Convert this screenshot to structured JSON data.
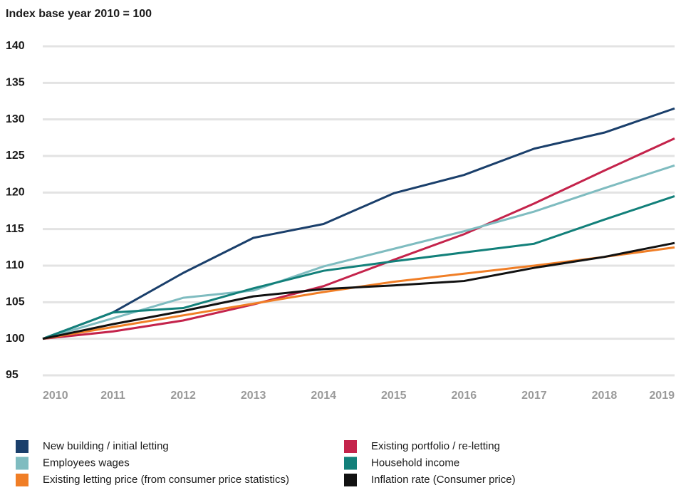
{
  "chart_data": {
    "type": "line",
    "title": "Index base year 2010 = 100",
    "x": [
      2010,
      2011,
      2012,
      2013,
      2014,
      2015,
      2016,
      2017,
      2018,
      2019
    ],
    "xlim": [
      2010,
      2019
    ],
    "xticks": [
      2010,
      2011,
      2012,
      2013,
      2014,
      2015,
      2016,
      2017,
      2018,
      2019
    ],
    "ylim": [
      95,
      140
    ],
    "yticks": [
      95,
      100,
      105,
      110,
      115,
      120,
      125,
      130,
      135,
      140
    ],
    "grid": true,
    "legend": "bottom",
    "series": [
      {
        "name": "New building / initial letting",
        "color": "#1a3f6b",
        "values": [
          100,
          103.6,
          109,
          113.8,
          115.7,
          119.9,
          122.4,
          126,
          128.2,
          131.5
        ]
      },
      {
        "name": "Existing portfolio / re-letting",
        "color": "#c4234b",
        "values": [
          100,
          101,
          102.5,
          104.7,
          107.2,
          110.8,
          114.3,
          118.5,
          123,
          127.4
        ]
      },
      {
        "name": "Employees wages",
        "color": "#7fbcc0",
        "values": [
          100,
          102.8,
          105.6,
          106.6,
          109.9,
          112.3,
          114.7,
          117.4,
          120.6,
          123.7
        ]
      },
      {
        "name": "Household income",
        "color": "#12807a",
        "values": [
          100,
          103.6,
          104.2,
          106.9,
          109.3,
          110.6,
          111.8,
          113,
          116.3,
          119.5
        ]
      },
      {
        "name": "Existing letting price (from consumer price statistics)",
        "color": "#f07e26",
        "values": [
          100,
          101.6,
          103.2,
          104.8,
          106.4,
          107.8,
          108.9,
          110,
          111.2,
          112.5
        ]
      },
      {
        "name": "Inflation rate (Consumer price)",
        "color": "#111111",
        "values": [
          100,
          102,
          103.8,
          105.8,
          106.8,
          107.3,
          107.9,
          109.7,
          111.2,
          113.1
        ]
      }
    ]
  }
}
